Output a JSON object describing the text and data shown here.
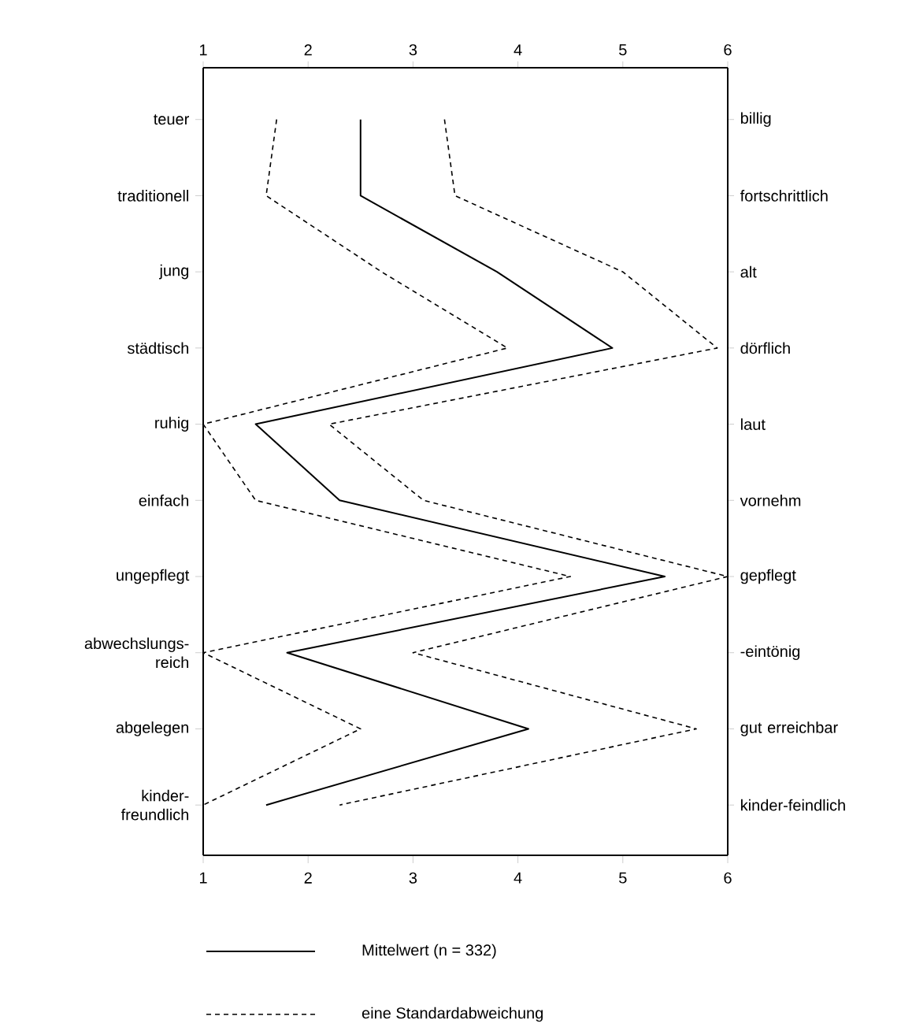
{
  "chart_data": {
    "type": "line",
    "orientation": "horizontal",
    "categories": [
      "teuer",
      "traditionell",
      "jung",
      "städtisch",
      "ruhig",
      "einfach",
      "ungepflegt",
      "abwechslungs-reich",
      "abgelegen",
      "kinder-freundlich"
    ],
    "y2_categories": [
      "billig",
      "fortschrittlich",
      "alt",
      "dörflich",
      "laut",
      "vornehm",
      "gepflegt",
      "-eintönig",
      "gut erreichbar",
      "kinder-feindlich"
    ],
    "xlim": [
      1,
      6
    ],
    "xticks": [
      1,
      2,
      3,
      4,
      5,
      6
    ],
    "x2lim": [
      1,
      6
    ],
    "x2ticks": [
      1,
      2,
      3,
      4,
      5,
      6
    ],
    "series": [
      {
        "name": "Mittelwert (n = 332)",
        "color": "#000000",
        "line_style": "solid",
        "values": [
          2.5,
          2.5,
          3.8,
          4.9,
          1.5,
          2.3,
          5.4,
          1.8,
          4.1,
          1.6
        ]
      },
      {
        "name": "eine Standardabweichung",
        "color": "#000000",
        "line_style": "dashed",
        "values": [
          1.7,
          1.6,
          2.7,
          3.9,
          1.0,
          1.5,
          4.5,
          1.0,
          2.5,
          1.0
        ]
      },
      {
        "color": "#000000",
        "line_style": "dashed",
        "values": [
          3.3,
          3.4,
          5.0,
          5.9,
          2.2,
          3.1,
          6.0,
          3.0,
          5.7,
          2.3
        ]
      }
    ],
    "legend": "bottom",
    "grid": false,
    "marker": "none"
  }
}
